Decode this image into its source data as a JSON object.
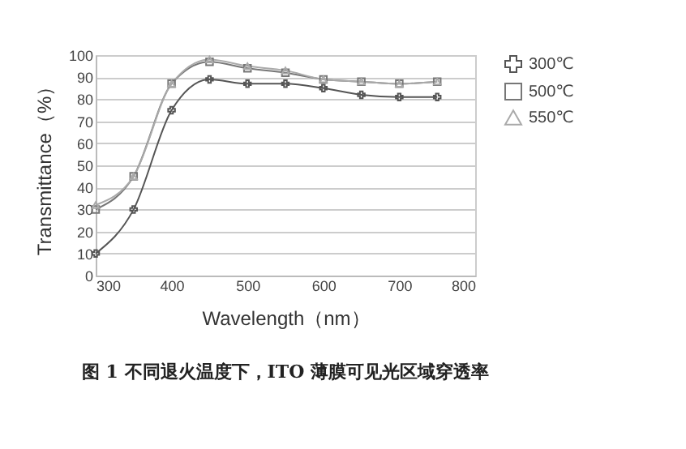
{
  "chart_data": {
    "type": "line",
    "title": "图 1 不同退火温度下，ITO 薄膜可见光区域穿透率",
    "xlabel": "Wavelength（nm）",
    "ylabel": "Transmittance（%）",
    "x": [
      300,
      350,
      400,
      450,
      500,
      550,
      600,
      650,
      700,
      750
    ],
    "series": [
      {
        "name": "300℃",
        "color": "#555555",
        "marker": "cross",
        "values": [
          10,
          30,
          75,
          89,
          87,
          87,
          85,
          82,
          81,
          81
        ]
      },
      {
        "name": "500℃",
        "color": "#777777",
        "marker": "square",
        "values": [
          30,
          45,
          87,
          97,
          94,
          92,
          89,
          88,
          87,
          88
        ]
      },
      {
        "name": "550℃",
        "color": "#aaaaaa",
        "marker": "triangle",
        "values": [
          32,
          45,
          87,
          98,
          95,
          93,
          89,
          88,
          87,
          88
        ]
      }
    ],
    "xlim": [
      300,
      800
    ],
    "xticks": [
      300,
      400,
      500,
      600,
      700,
      800
    ],
    "ylim": [
      0,
      100
    ],
    "yticks": [
      0,
      10,
      20,
      30,
      40,
      50,
      60,
      70,
      80,
      90,
      100
    ],
    "grid": "y",
    "legend": "right",
    "line_style": "solid"
  }
}
